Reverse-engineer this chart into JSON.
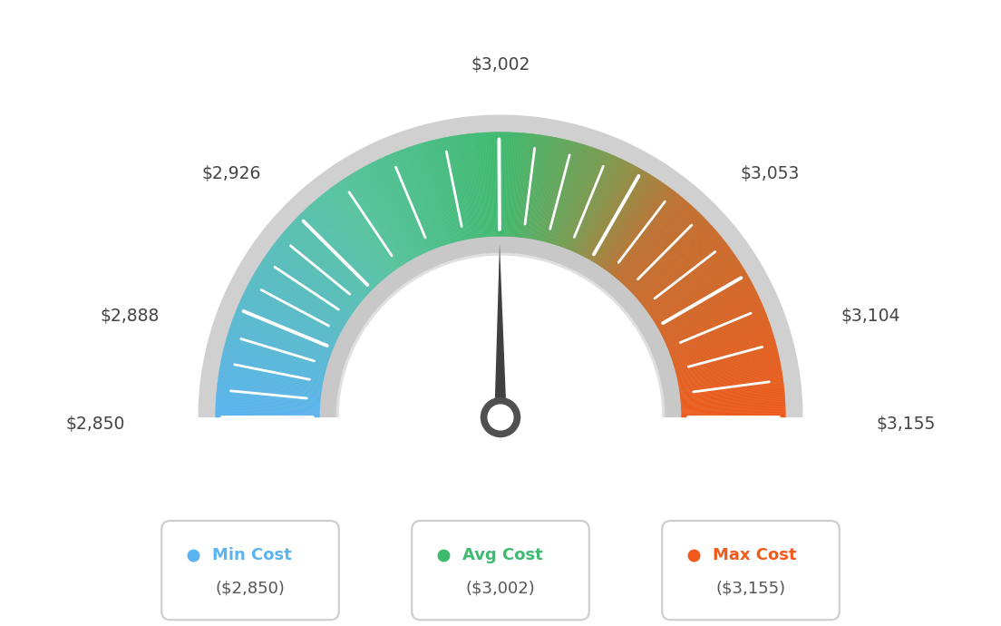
{
  "min_val": 2850,
  "max_val": 3155,
  "avg_val": 3002,
  "tick_values": [
    2850,
    2888,
    2926,
    3002,
    3053,
    3104,
    3155
  ],
  "tick_labels": [
    "$2,850",
    "$2,888",
    "$2,926",
    "$3,002",
    "$3,053",
    "$3,104",
    "$3,155"
  ],
  "color_stops": [
    [
      0.0,
      "#5ab4f0"
    ],
    [
      0.3,
      "#57c4a0"
    ],
    [
      0.5,
      "#3dba6e"
    ],
    [
      0.62,
      "#7a9c50"
    ],
    [
      0.72,
      "#c07030"
    ],
    [
      1.0,
      "#f05a1a"
    ]
  ],
  "legend": [
    {
      "label": "Min Cost",
      "value": "($2,850)",
      "color": "#5ab4f0"
    },
    {
      "label": "Avg Cost",
      "value": "($3,002)",
      "color": "#3dba6e"
    },
    {
      "label": "Max Cost",
      "value": "($3,155)",
      "color": "#f05a1a"
    }
  ],
  "background_color": "#ffffff",
  "outer_r": 0.82,
  "inner_r": 0.52,
  "bg_extra": 0.05,
  "inner_band": 0.055
}
